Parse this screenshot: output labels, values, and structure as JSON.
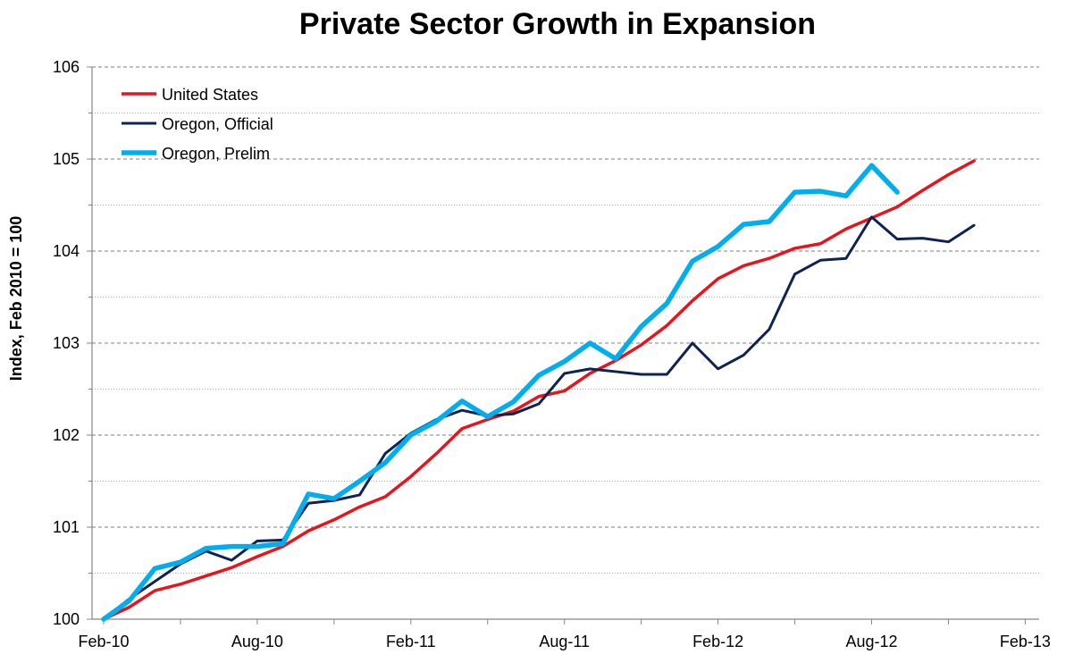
{
  "chart_data": {
    "type": "line",
    "title": "Private Sector Growth in Expansion",
    "xlabel": "",
    "ylabel": "Index, Feb 2010 = 100",
    "ylim": [
      100,
      106
    ],
    "yticks": [
      "100",
      "101",
      "102",
      "103",
      "104",
      "105",
      "106"
    ],
    "xlim": [
      "Feb-10",
      "Feb-13"
    ],
    "xtick_labels": [
      "Feb-10",
      "Aug-10",
      "Feb-11",
      "Aug-11",
      "Feb-12",
      "Aug-12",
      "Feb-13"
    ],
    "grid": "horizontal dashed",
    "legend": "top-left",
    "x": [
      "Feb-10",
      "Mar-10",
      "Apr-10",
      "May-10",
      "Jun-10",
      "Jul-10",
      "Aug-10",
      "Sep-10",
      "Oct-10",
      "Nov-10",
      "Dec-10",
      "Jan-11",
      "Feb-11",
      "Mar-11",
      "Apr-11",
      "May-11",
      "Jun-11",
      "Jul-11",
      "Aug-11",
      "Sep-11",
      "Oct-11",
      "Nov-11",
      "Dec-11",
      "Jan-12",
      "Feb-12",
      "Mar-12",
      "Apr-12",
      "May-12",
      "Jun-12",
      "Jul-12",
      "Aug-12",
      "Sep-12",
      "Oct-12",
      "Nov-12",
      "Dec-12"
    ],
    "series": [
      {
        "name": "United States",
        "color": "#e8141b",
        "values": [
          100.0,
          100.13,
          100.31,
          100.38,
          100.47,
          100.56,
          100.68,
          100.79,
          100.96,
          101.08,
          101.22,
          101.33,
          101.55,
          101.8,
          102.07,
          102.17,
          102.26,
          102.42,
          102.48,
          102.67,
          102.81,
          102.98,
          103.19,
          103.46,
          103.7,
          103.84,
          103.92,
          104.03,
          104.08,
          104.24,
          104.36,
          104.48,
          104.66,
          104.83,
          104.98
        ]
      },
      {
        "name": "Oregon, Official",
        "color": "#0d2354",
        "values": [
          100.0,
          100.22,
          100.41,
          100.6,
          100.74,
          100.64,
          100.85,
          100.86,
          101.26,
          101.29,
          101.35,
          101.8,
          102.02,
          102.17,
          102.27,
          102.21,
          102.23,
          102.34,
          102.67,
          102.72,
          102.69,
          102.66,
          102.66,
          103.0,
          102.72,
          102.87,
          103.15,
          103.75,
          103.9,
          103.92,
          104.37,
          104.13,
          104.14,
          104.1,
          104.28
        ]
      },
      {
        "name": "Oregon, Prelim",
        "color": "#00aeef",
        "values": [
          100.0,
          100.2,
          100.55,
          100.62,
          100.77,
          100.79,
          100.79,
          100.82,
          101.36,
          101.31,
          101.5,
          101.7,
          102.0,
          102.15,
          102.37,
          102.2,
          102.36,
          102.65,
          102.8,
          103.0,
          102.83,
          103.18,
          103.43,
          103.89,
          104.05,
          104.29,
          104.32,
          104.64,
          104.65,
          104.6,
          104.93,
          104.64,
          null,
          null,
          null
        ]
      }
    ]
  }
}
